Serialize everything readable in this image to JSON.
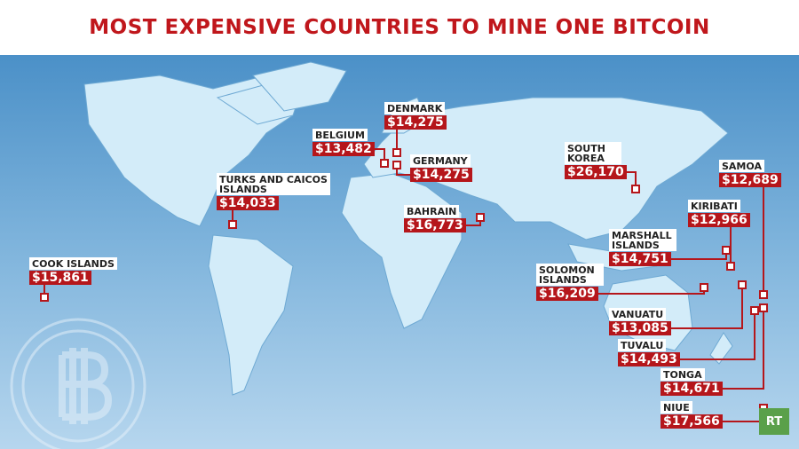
{
  "title": "MOST EXPENSIVE COUNTRIES TO MINE ONE BITCOIN",
  "labels": [
    {
      "name": "DENMARK",
      "value": "$14,275"
    },
    {
      "name": "BELGIUM",
      "value": "$13,482"
    },
    {
      "name": "GERMANY",
      "value": "$14,275"
    },
    {
      "name": "TURKS AND CAICOS ISLANDS",
      "value": "$14,033"
    },
    {
      "name": "BAHRAIN",
      "value": "$16,773"
    },
    {
      "name": "SOUTH KOREA",
      "value": "$26,170"
    },
    {
      "name": "SAMOA",
      "value": "$12,689"
    },
    {
      "name": "KIRIBATI",
      "value": "$12,966"
    },
    {
      "name": "MARSHALL ISLANDS",
      "value": "$14,751"
    },
    {
      "name": "SOLOMON ISLANDS",
      "value": "$16,209"
    },
    {
      "name": "VANUATU",
      "value": "$13,085"
    },
    {
      "name": "TUVALU",
      "value": "$14,493"
    },
    {
      "name": "TONGA",
      "value": "$14,671"
    },
    {
      "name": "NIUE",
      "value": "$17,566"
    },
    {
      "name": "COOK ISLANDS",
      "value": "$15,861"
    }
  ],
  "logo": "RT"
}
